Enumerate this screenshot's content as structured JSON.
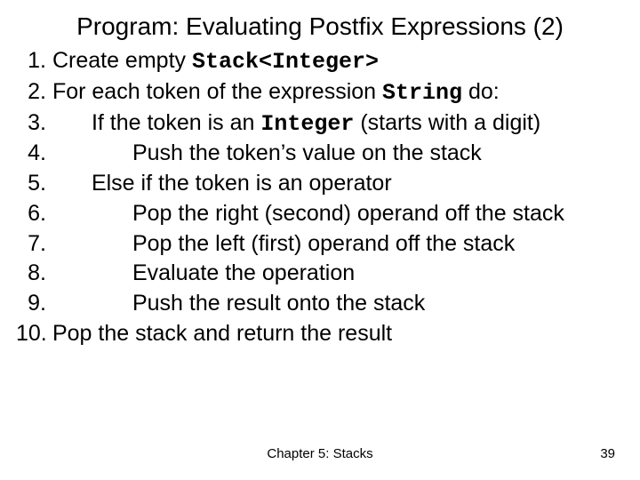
{
  "title": "Program: Evaluating Postfix Expressions (2)",
  "lines": {
    "n1": "1.",
    "t1a": "Create empty ",
    "t1b": "Stack<Integer>",
    "n2": "2.",
    "t2a": "For each token of the expression ",
    "t2b": "String",
    "t2c": " do:",
    "n3": "3.",
    "t3a": "If the token is an ",
    "t3b": "Integer",
    "t3c": " (starts with a digit)",
    "n4": "4.",
    "t4": "Push the token’s value on the stack",
    "n5": "5.",
    "t5": "Else if the token is an operator",
    "n6": "6.",
    "t6": "Pop the right (second) operand off the stack",
    "n7": "7.",
    "t7": "Pop the left (first) operand off the stack",
    "n8": "8.",
    "t8": "Evaluate the operation",
    "n9": "9.",
    "t9": "Push the result onto the stack",
    "n10": "10.",
    "t10": "Pop the stack and return the result"
  },
  "footer": {
    "chapter": "Chapter 5: Stacks",
    "page": "39"
  },
  "style": {
    "background_color": "#ffffff",
    "text_color": "#000000",
    "title_fontsize": 28,
    "body_fontsize": 25,
    "footer_fontsize": 15,
    "mono_font": "Courier New",
    "sans_font": "Arial"
  }
}
